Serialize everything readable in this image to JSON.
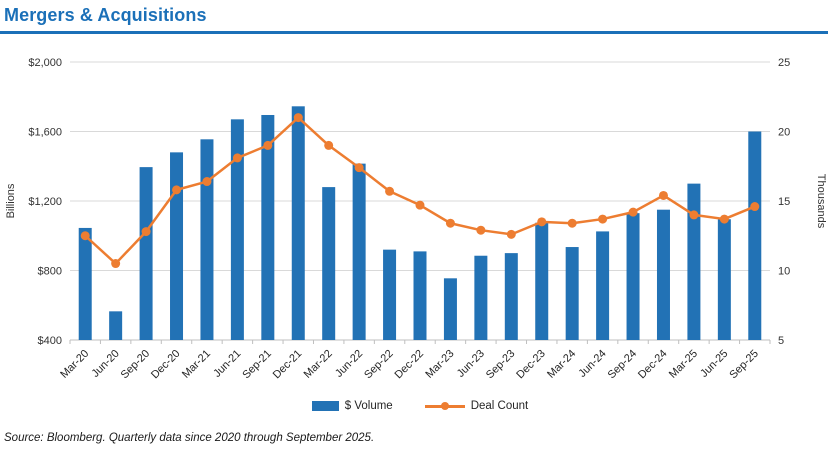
{
  "page": {
    "title": "Mergers & Acquisitions",
    "source_note": "Source: Bloomberg. Quarterly data since 2020 through September 2025."
  },
  "legend": {
    "volume_label": "$ Volume",
    "deal_count_label": "Deal Count"
  },
  "colors": {
    "bar_blue": "#2272B5",
    "line_orange": "#ED7D31",
    "title_blue": "#1B70B8",
    "gridline": "#D9D9D9",
    "axis_line": "#BFBFBF",
    "tick_text": "#333333"
  },
  "chart_data": {
    "type": "bar",
    "title": "Mergers & Acquisitions",
    "categories": [
      "Mar-20",
      "Jun-20",
      "Sep-20",
      "Dec-20",
      "Mar-21",
      "Jun-21",
      "Sep-21",
      "Dec-21",
      "Mar-22",
      "Jun-22",
      "Sep-22",
      "Dec-22",
      "Mar-23",
      "Jun-23",
      "Sep-23",
      "Dec-23",
      "Mar-24",
      "Jun-24",
      "Sep-24",
      "Dec-24",
      "Mar-25",
      "Jun-25",
      "Sep-25"
    ],
    "series": [
      {
        "name": "$ Volume",
        "type": "bar",
        "axis": "left",
        "unit": "USD billions",
        "values": [
          1045,
          565,
          1395,
          1480,
          1555,
          1670,
          1695,
          1745,
          1280,
          1415,
          920,
          910,
          755,
          885,
          900,
          1075,
          935,
          1025,
          1130,
          1150,
          1300,
          1095,
          1600
        ]
      },
      {
        "name": "Deal Count",
        "type": "line",
        "axis": "right",
        "unit": "thousands",
        "values": [
          12.5,
          10.5,
          12.8,
          15.8,
          16.4,
          18.1,
          19.0,
          21.0,
          19.0,
          17.4,
          15.7,
          14.7,
          13.4,
          12.9,
          12.6,
          13.5,
          13.4,
          13.7,
          14.2,
          15.4,
          14.0,
          13.7,
          14.6
        ]
      }
    ],
    "left_axis": {
      "label": "Billions",
      "min": 400,
      "max": 2000,
      "tick_step": 400,
      "ticks": [
        "$2,000",
        "$1,600",
        "$1,200",
        "$800",
        "$400"
      ],
      "tick_values": [
        2000,
        1600,
        1200,
        800,
        400
      ]
    },
    "right_axis": {
      "label": "Thousands",
      "min": 5,
      "max": 25,
      "tick_step": 5,
      "ticks": [
        "25",
        "20",
        "15",
        "10",
        "5"
      ],
      "tick_values": [
        25,
        20,
        15,
        10,
        5
      ]
    },
    "grid": true,
    "legend_position": "bottom"
  }
}
